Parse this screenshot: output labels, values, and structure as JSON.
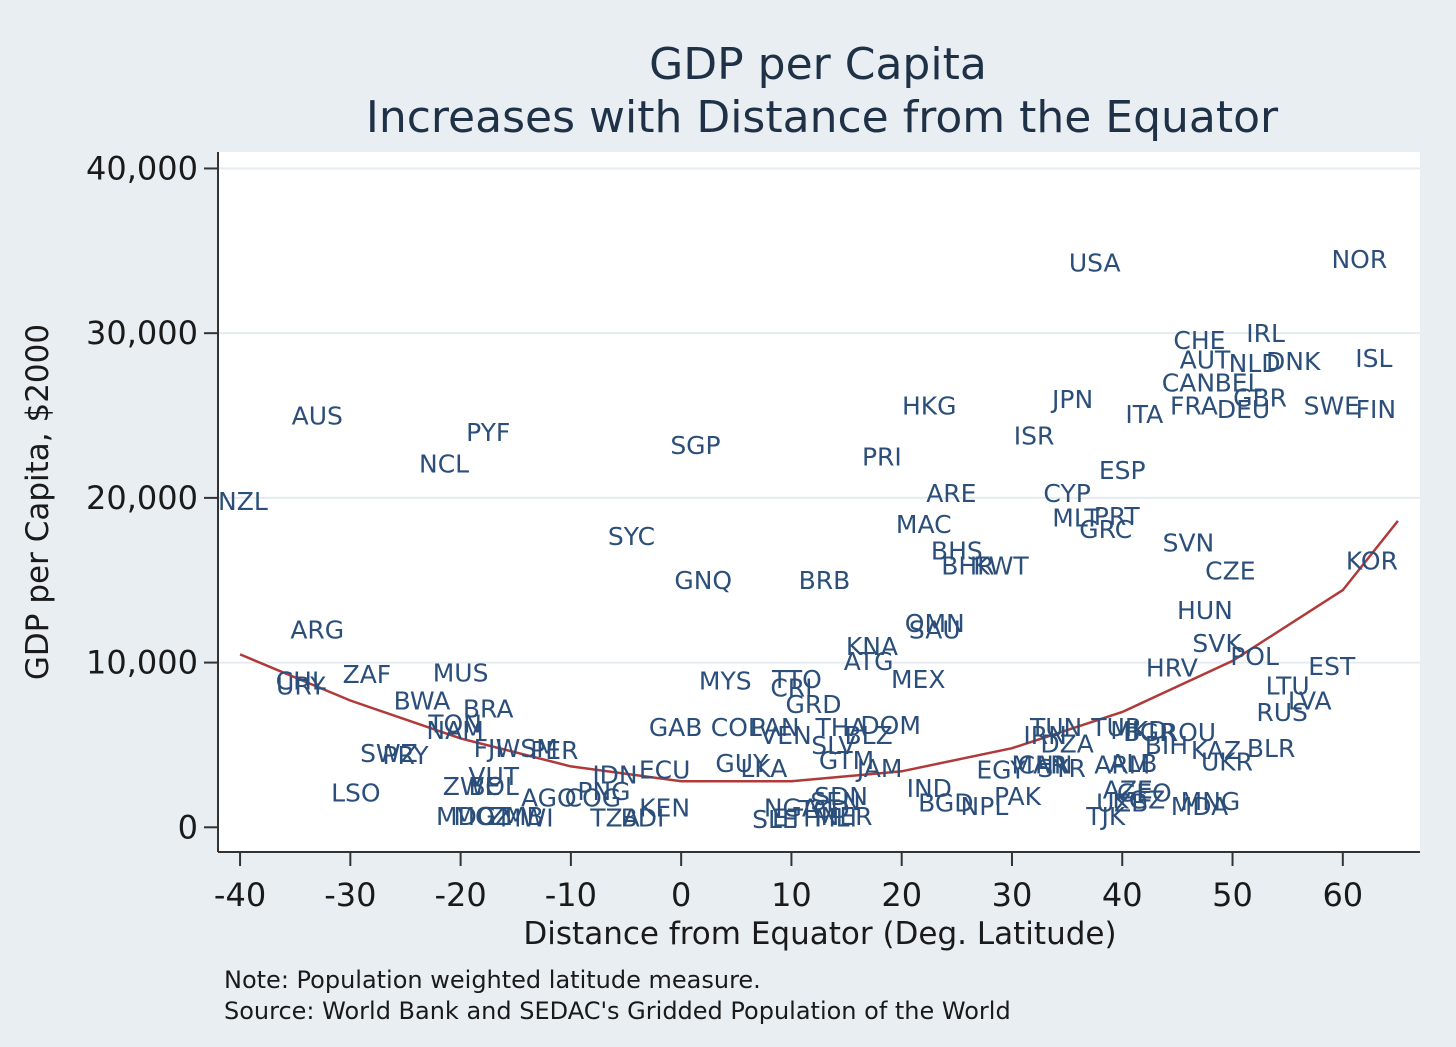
{
  "chart_data": {
    "type": "scatter",
    "title": [
      "GDP per Capita",
      "Increases with Distance from the Equator"
    ],
    "xlabel": "Distance from Equator (Deg. Latitude)",
    "ylabel": "GDP per Capita, $2000",
    "xlim": [
      -42,
      67
    ],
    "ylim": [
      -1500,
      41000
    ],
    "xticks": [
      -40,
      -30,
      -20,
      -10,
      0,
      10,
      20,
      30,
      40,
      50,
      60
    ],
    "xtick_labels": [
      "-40",
      "-30",
      "-20",
      "-10",
      "0",
      "10",
      "20",
      "30",
      "40",
      "50",
      "60"
    ],
    "yticks": [
      0,
      10000,
      20000,
      30000,
      40000
    ],
    "ytick_labels": [
      "0",
      "10,000",
      "20,000",
      "30,000",
      "40,000"
    ],
    "grid": "horizontal",
    "label_color": "#2b4f7a",
    "fit_line_color": "#b03a3a",
    "fit_line": {
      "type": "quadratic",
      "x": [
        -40,
        -30,
        -20,
        -10,
        0,
        10,
        20,
        30,
        40,
        50,
        60,
        65
      ],
      "y": [
        10500,
        7700,
        5400,
        3700,
        2800,
        2800,
        3400,
        4800,
        7000,
        10100,
        14400,
        18600
      ]
    },
    "points": [
      {
        "label": "USA",
        "x": 37.5,
        "y": 34300
      },
      {
        "label": "NOR",
        "x": 61.5,
        "y": 34500
      },
      {
        "label": "CHE",
        "x": 47.0,
        "y": 29600
      },
      {
        "label": "IRL",
        "x": 53.0,
        "y": 30000
      },
      {
        "label": "AUT",
        "x": 47.5,
        "y": 28400
      },
      {
        "label": "NLD",
        "x": 52.0,
        "y": 28200
      },
      {
        "label": "DNK",
        "x": 55.5,
        "y": 28300
      },
      {
        "label": "ISL",
        "x": 64.5,
        "y": 28500
      },
      {
        "label": "CAN",
        "x": 46.0,
        "y": 27000
      },
      {
        "label": "BEL",
        "x": 50.5,
        "y": 27000
      },
      {
        "label": "GBR",
        "x": 52.5,
        "y": 26100
      },
      {
        "label": "SWE",
        "x": 59.0,
        "y": 25600
      },
      {
        "label": "FIN",
        "x": 63.0,
        "y": 25400
      },
      {
        "label": "FRA",
        "x": 46.5,
        "y": 25600
      },
      {
        "label": "DEU",
        "x": 51.0,
        "y": 25400
      },
      {
        "label": "ITA",
        "x": 42.0,
        "y": 25100
      },
      {
        "label": "JPN",
        "x": 35.5,
        "y": 26000
      },
      {
        "label": "HKG",
        "x": 22.5,
        "y": 25600
      },
      {
        "label": "ISR",
        "x": 32.0,
        "y": 23800
      },
      {
        "label": "ESP",
        "x": 40.0,
        "y": 21700
      },
      {
        "label": "CYP",
        "x": 35.0,
        "y": 20300
      },
      {
        "label": "MLT",
        "x": 35.8,
        "y": 18800
      },
      {
        "label": "PRT",
        "x": 39.5,
        "y": 18900
      },
      {
        "label": "GRC",
        "x": 38.5,
        "y": 18100
      },
      {
        "label": "SVN",
        "x": 46.0,
        "y": 17300
      },
      {
        "label": "CZE",
        "x": 49.8,
        "y": 15600
      },
      {
        "label": "KOR",
        "x": 65.0,
        "y": 16200
      },
      {
        "label": "HUN",
        "x": 47.5,
        "y": 13200
      },
      {
        "label": "SVK",
        "x": 48.6,
        "y": 11200
      },
      {
        "label": "POL",
        "x": 52.0,
        "y": 10400
      },
      {
        "label": "EST",
        "x": 59.0,
        "y": 9800
      },
      {
        "label": "HRV",
        "x": 44.5,
        "y": 9700
      },
      {
        "label": "LTU",
        "x": 55.0,
        "y": 8600
      },
      {
        "label": "LVA",
        "x": 57.0,
        "y": 7700
      },
      {
        "label": "RUS",
        "x": 54.5,
        "y": 7000
      },
      {
        "label": "BLR",
        "x": 53.5,
        "y": 4800
      },
      {
        "label": "UKR",
        "x": 49.5,
        "y": 4000
      },
      {
        "label": "KAZ",
        "x": 48.5,
        "y": 4700
      },
      {
        "label": "BIH",
        "x": 44.0,
        "y": 5000
      },
      {
        "label": "ROU",
        "x": 46.0,
        "y": 5800
      },
      {
        "label": "BGR",
        "x": 42.5,
        "y": 5800
      },
      {
        "label": "MKD",
        "x": 41.5,
        "y": 5900
      },
      {
        "label": "TUR",
        "x": 39.5,
        "y": 6100
      },
      {
        "label": "TUN",
        "x": 34.0,
        "y": 6100
      },
      {
        "label": "IRN",
        "x": 33.0,
        "y": 5600
      },
      {
        "label": "DZA",
        "x": 35.0,
        "y": 5100
      },
      {
        "label": "ALB",
        "x": 41.0,
        "y": 3900
      },
      {
        "label": "ARM",
        "x": 40.0,
        "y": 3800
      },
      {
        "label": "AZE",
        "x": 40.5,
        "y": 2300
      },
      {
        "label": "GEO",
        "x": 42.0,
        "y": 2100
      },
      {
        "label": "KGZ",
        "x": 41.5,
        "y": 1700
      },
      {
        "label": "UZB",
        "x": 40.0,
        "y": 1500
      },
      {
        "label": "MNG",
        "x": 48.0,
        "y": 1600
      },
      {
        "label": "MDA",
        "x": 47.0,
        "y": 1300
      },
      {
        "label": "TJK",
        "x": 38.5,
        "y": 700
      },
      {
        "label": "SYR",
        "x": 34.5,
        "y": 3600
      },
      {
        "label": "EGY",
        "x": 29.0,
        "y": 3500
      },
      {
        "label": "MAR",
        "x": 32.5,
        "y": 3800
      },
      {
        "label": "CHN",
        "x": 33.0,
        "y": 3800
      },
      {
        "label": "PAK",
        "x": 30.5,
        "y": 1900
      },
      {
        "label": "NPL",
        "x": 27.5,
        "y": 1300
      },
      {
        "label": "IND",
        "x": 22.5,
        "y": 2400
      },
      {
        "label": "BGD",
        "x": 24.0,
        "y": 1500
      },
      {
        "label": "ARE",
        "x": 24.5,
        "y": 20300
      },
      {
        "label": "MAC",
        "x": 22.0,
        "y": 18400
      },
      {
        "label": "PRI",
        "x": 18.2,
        "y": 22500
      },
      {
        "label": "BHS",
        "x": 25.0,
        "y": 16800
      },
      {
        "label": "BHR",
        "x": 26.0,
        "y": 15900
      },
      {
        "label": "KWT",
        "x": 29.0,
        "y": 15900
      },
      {
        "label": "OMN",
        "x": 23.0,
        "y": 12400
      },
      {
        "label": "SAU",
        "x": 23.0,
        "y": 12000
      },
      {
        "label": "KNA",
        "x": 17.3,
        "y": 11000
      },
      {
        "label": "ATG",
        "x": 17.0,
        "y": 10100
      },
      {
        "label": "MEX",
        "x": 21.5,
        "y": 9000
      },
      {
        "label": "BRB",
        "x": 13.0,
        "y": 15000
      },
      {
        "label": "GNQ",
        "x": 2.0,
        "y": 15000
      },
      {
        "label": "SGP",
        "x": 1.3,
        "y": 23200
      },
      {
        "label": "SYC",
        "x": -4.5,
        "y": 17700
      },
      {
        "label": "MYS",
        "x": 4.0,
        "y": 8900
      },
      {
        "label": "TTO",
        "x": 10.5,
        "y": 9000
      },
      {
        "label": "CRI",
        "x": 10.0,
        "y": 8500
      },
      {
        "label": "GRD",
        "x": 12.0,
        "y": 7500
      },
      {
        "label": "GAB",
        "x": -0.5,
        "y": 6100
      },
      {
        "label": "COL",
        "x": 5.0,
        "y": 6100
      },
      {
        "label": "PAN",
        "x": 8.5,
        "y": 6100
      },
      {
        "label": "THA",
        "x": 14.5,
        "y": 6100
      },
      {
        "label": "DOM",
        "x": 19.0,
        "y": 6200
      },
      {
        "label": "VEN",
        "x": 9.5,
        "y": 5600
      },
      {
        "label": "BLZ",
        "x": 17.0,
        "y": 5600
      },
      {
        "label": "SLV",
        "x": 13.8,
        "y": 5000
      },
      {
        "label": "GTM",
        "x": 15.0,
        "y": 4100
      },
      {
        "label": "GUY",
        "x": 5.5,
        "y": 3900
      },
      {
        "label": "LKA",
        "x": 7.5,
        "y": 3600
      },
      {
        "label": "JAM",
        "x": 18.0,
        "y": 3600
      },
      {
        "label": "ECU",
        "x": -1.5,
        "y": 3500
      },
      {
        "label": "IDN",
        "x": -6.0,
        "y": 3200
      },
      {
        "label": "PNG",
        "x": -7.0,
        "y": 2200
      },
      {
        "label": "NZL",
        "x": -42.0,
        "y": 19800
      },
      {
        "label": "AUS",
        "x": -33.0,
        "y": 25000
      },
      {
        "label": "NCL",
        "x": -21.5,
        "y": 22100
      },
      {
        "label": "PYF",
        "x": -17.5,
        "y": 24000
      },
      {
        "label": "ARG",
        "x": -33.0,
        "y": 12000
      },
      {
        "label": "CHL",
        "x": -34.5,
        "y": 8900
      },
      {
        "label": "URY",
        "x": -34.5,
        "y": 8600
      },
      {
        "label": "ZAF",
        "x": -28.5,
        "y": 9300
      },
      {
        "label": "MUS",
        "x": -20.0,
        "y": 9400
      },
      {
        "label": "BWA",
        "x": -23.5,
        "y": 7700
      },
      {
        "label": "BRA",
        "x": -17.5,
        "y": 7200
      },
      {
        "label": "TON",
        "x": -20.5,
        "y": 6300
      },
      {
        "label": "NAM",
        "x": -20.5,
        "y": 5900
      },
      {
        "label": "FJI",
        "x": -17.5,
        "y": 4800
      },
      {
        "label": "WSM",
        "x": -14.0,
        "y": 4800
      },
      {
        "label": "PER",
        "x": -11.5,
        "y": 4700
      },
      {
        "label": "SWZ",
        "x": -26.5,
        "y": 4500
      },
      {
        "label": "PRY",
        "x": -25.0,
        "y": 4400
      },
      {
        "label": "VUT",
        "x": -17.0,
        "y": 3100
      },
      {
        "label": "ZWE",
        "x": -19.0,
        "y": 2500
      },
      {
        "label": "BOL",
        "x": -17.0,
        "y": 2500
      },
      {
        "label": "LSO",
        "x": -29.5,
        "y": 2100
      },
      {
        "label": "AGO",
        "x": -12.0,
        "y": 1800
      },
      {
        "label": "COG",
        "x": -8.0,
        "y": 1800
      },
      {
        "label": "MDG",
        "x": -19.5,
        "y": 700
      },
      {
        "label": "MOZ",
        "x": -18.0,
        "y": 700
      },
      {
        "label": "MWI",
        "x": -14.0,
        "y": 600
      },
      {
        "label": "ZMB",
        "x": -15.0,
        "y": 700
      },
      {
        "label": "TZA",
        "x": -6.0,
        "y": 600
      },
      {
        "label": "BDI",
        "x": -3.5,
        "y": 600
      },
      {
        "label": "KEN",
        "x": -1.5,
        "y": 1200
      },
      {
        "label": "SLE",
        "x": 8.5,
        "y": 500
      },
      {
        "label": "NGA",
        "x": 10.0,
        "y": 1200
      },
      {
        "label": "ETH",
        "x": 10.5,
        "y": 600
      },
      {
        "label": "SEN",
        "x": 14.0,
        "y": 1600
      },
      {
        "label": "MLI",
        "x": 14.0,
        "y": 600
      },
      {
        "label": "SDN",
        "x": 14.5,
        "y": 1900
      },
      {
        "label": "NER",
        "x": 15.0,
        "y": 700
      },
      {
        "label": "TCD",
        "x": 13.0,
        "y": 1100
      }
    ],
    "notes": [
      "Note: Population weighted latitude measure.",
      "Source: World Bank and SEDAC's Gridded Population of the World"
    ]
  }
}
